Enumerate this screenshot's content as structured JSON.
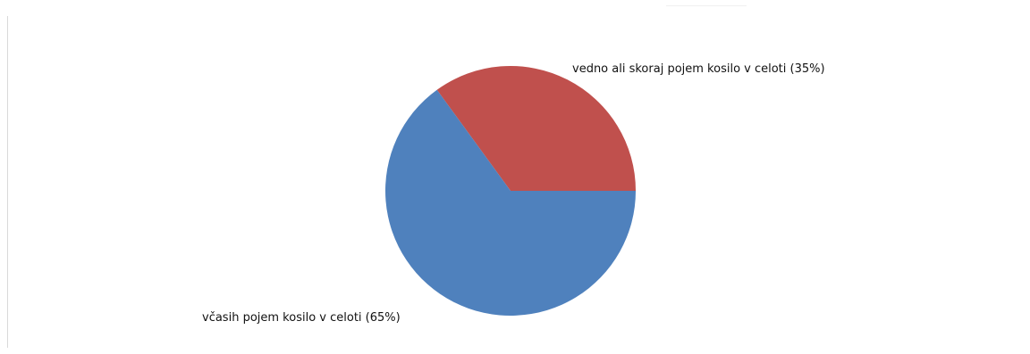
{
  "chart_data": {
    "type": "pie",
    "title": "",
    "slices": [
      {
        "label": "vedno ali skoraj pojem kosilo v celoti (35%)",
        "value": 35,
        "color": "#c0504d"
      },
      {
        "label": "včasih pojem kosilo v celoti (65%)",
        "value": 65,
        "color": "#4f81bd"
      }
    ],
    "legend": "none",
    "start_angle_deg": 0,
    "direction": "counterclockwise"
  }
}
